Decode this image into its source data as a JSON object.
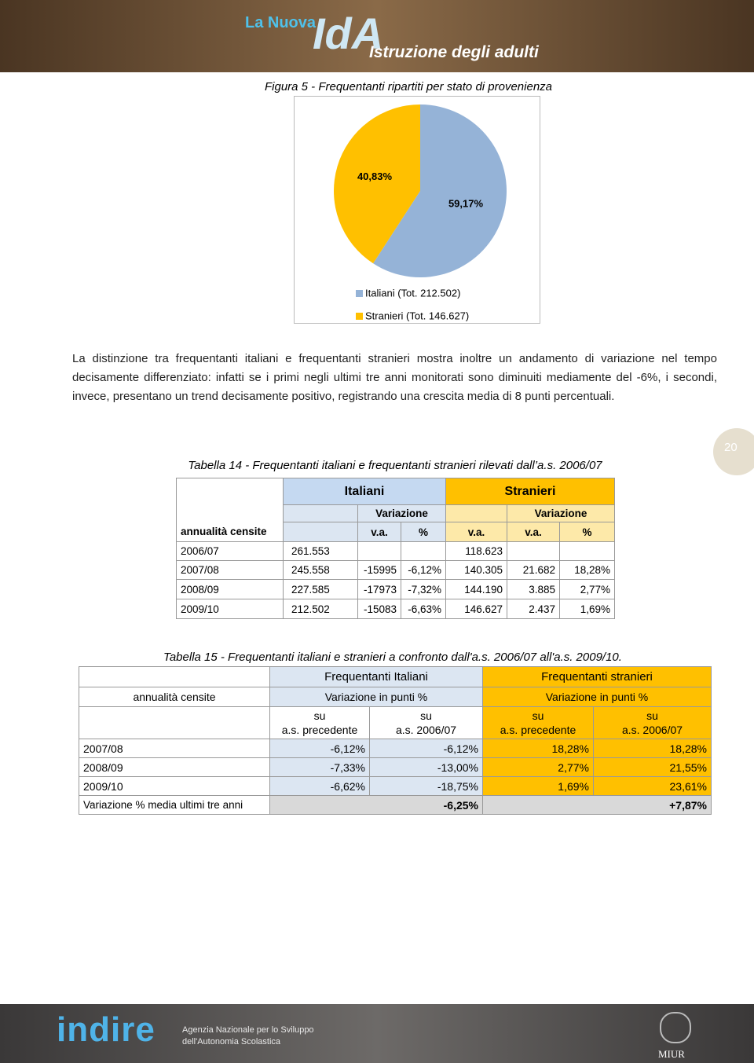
{
  "header": {
    "logo_top": "La Nuova",
    "logo_mark": "IdA",
    "logo_bottom": "Istruzione degli adulti"
  },
  "figure": {
    "caption": "Figura 5 - Frequentanti ripartiti per stato di provenienza"
  },
  "chart_data": {
    "type": "pie",
    "categories": [
      "Italiani (Tot. 212.502)",
      "Stranieri (Tot. 146.627)"
    ],
    "values": [
      59.17,
      40.83
    ],
    "value_labels": [
      "59,17%",
      "40,83%"
    ],
    "colors": [
      "#95B3D7",
      "#FFC000"
    ]
  },
  "paragraph": "La distinzione tra frequentanti italiani e frequentanti stranieri mostra inoltre un andamento di variazione nel tempo decisamente differenziato: infatti se i primi negli ultimi tre anni monitorati sono diminuiti mediamente del -6%, i secondi, invece, presentano un trend decisamente positivo, registrando una crescita media di 8 punti percentuali.",
  "page_number": "20",
  "table14": {
    "caption": "Tabella 14 - Frequentanti italiani e frequentanti stranieri rilevati dall’a.s. 2006/07",
    "groups": [
      "Italiani",
      "Stranieri"
    ],
    "subgroups": [
      "Variazione",
      "Variazione"
    ],
    "columns": [
      "annualità censite",
      "v.a.",
      "%",
      "v.a.",
      "v.a.",
      "%"
    ],
    "rows": [
      [
        "2006/07",
        "261.553",
        null,
        null,
        "118.623",
        null,
        null
      ],
      [
        "2007/08",
        "245.558",
        "-15995",
        "-6,12%",
        "140.305",
        "21.682",
        "18,28%"
      ],
      [
        "2008/09",
        "227.585",
        "-17973",
        "-7,32%",
        "144.190",
        "3.885",
        "2,77%"
      ],
      [
        "2009/10",
        "212.502",
        "-15083",
        "-6,63%",
        "146.627",
        "2.437",
        "1,69%"
      ]
    ]
  },
  "table15": {
    "caption": "Tabella 15 - Frequentanti italiani e stranieri a confronto dall'a.s. 2006/07 all'a.s. 2009/10.",
    "groups": [
      "Frequentanti Italiani",
      "Frequentanti stranieri"
    ],
    "row_label": "annualità censite",
    "subgroups": [
      "Variazione in punti %",
      "Variazione in punti %"
    ],
    "sub_headers": [
      [
        "su",
        "a.s. precedente"
      ],
      [
        "su",
        "a.s. 2006/07"
      ],
      [
        "su",
        "a.s. precedente"
      ],
      [
        "su",
        "a.s. 2006/07"
      ]
    ],
    "rows": [
      [
        "2007/08",
        "-6,12%",
        "-6,12%",
        "18,28%",
        "18,28%"
      ],
      [
        "2008/09",
        "-7,33%",
        "-13,00%",
        "2,77%",
        "21,55%"
      ],
      [
        "2009/10",
        "-6,62%",
        "-18,75%",
        "1,69%",
        "23,61%"
      ]
    ],
    "summary": {
      "label": "Variazione % media ultimi tre anni",
      "values": [
        "-6,25%",
        "+7,87%"
      ]
    }
  },
  "footer": {
    "logo": "indire",
    "agency_line1": "Agenzia Nazionale per lo Sviluppo",
    "agency_line2": "dell'Autonomia Scolastica",
    "ministry": "MIUR"
  }
}
